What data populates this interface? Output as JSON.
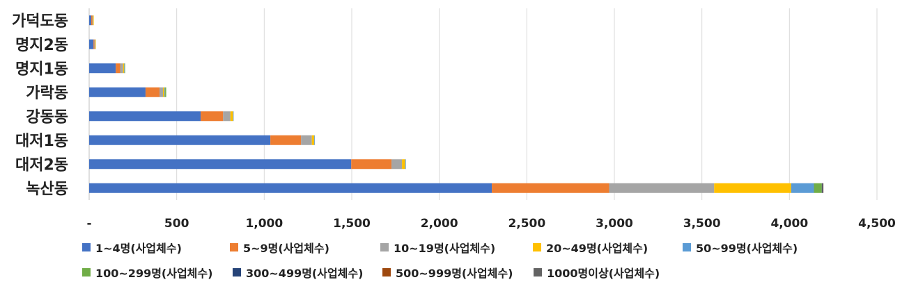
{
  "chart_data": {
    "type": "bar",
    "orientation": "horizontal",
    "stacked": true,
    "categories": [
      "가덕도동",
      "명지2동",
      "명지1동",
      "가락동",
      "강동동",
      "대저1동",
      "대저2동",
      "녹산동"
    ],
    "series": [
      {
        "name": "1~4명(사업체수)",
        "color": "#4472C4",
        "values": [
          12,
          25,
          152,
          322,
          637,
          1035,
          1497,
          2300
        ]
      },
      {
        "name": "5~9명(사업체수)",
        "color": "#ED7D31",
        "values": [
          6,
          5,
          25,
          80,
          128,
          175,
          230,
          670
        ]
      },
      {
        "name": "10~19명(사업체수)",
        "color": "#A5A5A5",
        "values": [
          4,
          5,
          17,
          20,
          42,
          62,
          60,
          600
        ]
      },
      {
        "name": "20~49명(사업체수)",
        "color": "#FFC000",
        "values": [
          4,
          2,
          6,
          8,
          15,
          14,
          18,
          440
        ]
      },
      {
        "name": "50~99명(사업체수)",
        "color": "#5B9BD5",
        "values": [
          0,
          0,
          2,
          4,
          3,
          2,
          4,
          130
        ]
      },
      {
        "name": "100~299명(사업체수)",
        "color": "#70AD47",
        "values": [
          0,
          0,
          1,
          6,
          0,
          0,
          0,
          45
        ]
      },
      {
        "name": "300~499명(사업체수)",
        "color": "#264478",
        "values": [
          0,
          0,
          0,
          0,
          0,
          0,
          0,
          4
        ]
      },
      {
        "name": "500~999명(사업체수)",
        "color": "#9E480E",
        "values": [
          0,
          0,
          0,
          0,
          0,
          0,
          0,
          2
        ]
      },
      {
        "name": "1000명이상(사업체수)",
        "color": "#636363",
        "values": [
          0,
          0,
          0,
          0,
          0,
          0,
          0,
          1
        ]
      }
    ],
    "xlim": [
      0,
      4500
    ],
    "xticks": [
      0,
      500,
      1000,
      1500,
      2000,
      2500,
      3000,
      3500,
      4000,
      4500
    ],
    "xtick_labels": [
      "-",
      "500",
      "1,000",
      "1,500",
      "2,000",
      "2,500",
      "3,000",
      "3,500",
      "4,000",
      "4,500"
    ],
    "grid": true,
    "gridline_color": "#D9D9D9",
    "legend_position": "bottom"
  }
}
